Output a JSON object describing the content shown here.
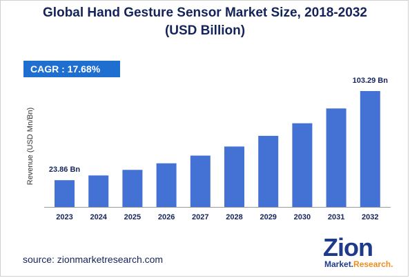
{
  "title_line1": "Global Hand Gesture Sensor Market Size, 2018-2032",
  "title_line2": "(USD Billion)",
  "cagr_label": "CAGR :  17.68%",
  "source_text": "source: zionmarketresearch.com",
  "logo": {
    "main": "Zion",
    "sub_part1": "Market.",
    "sub_part2": "Research."
  },
  "colors": {
    "bar": "#4472d4",
    "title": "#14235a",
    "cagr_bg": "#1f6fd1",
    "logo_blue": "#1e3a8a",
    "logo_orange": "#f28c1a",
    "axis": "#999999"
  },
  "chart_data": {
    "type": "bar",
    "title": "Global Hand Gesture Sensor Market Size, 2018-2032 (USD Billion)",
    "xlabel": "",
    "ylabel": "Revenue (USD Mn/Bn)",
    "categories": [
      "2023",
      "2024",
      "2025",
      "2026",
      "2027",
      "2028",
      "2029",
      "2030",
      "2031",
      "2032"
    ],
    "values": [
      23.86,
      28.08,
      33.05,
      38.89,
      45.77,
      53.86,
      63.38,
      74.59,
      87.78,
      103.29
    ],
    "data_labels": [
      {
        "index": 0,
        "text": "23.86 Bn"
      },
      {
        "index": 9,
        "text": "103.29 Bn"
      }
    ],
    "ylim": [
      0,
      103.29
    ],
    "grid": false,
    "legend": "none"
  }
}
